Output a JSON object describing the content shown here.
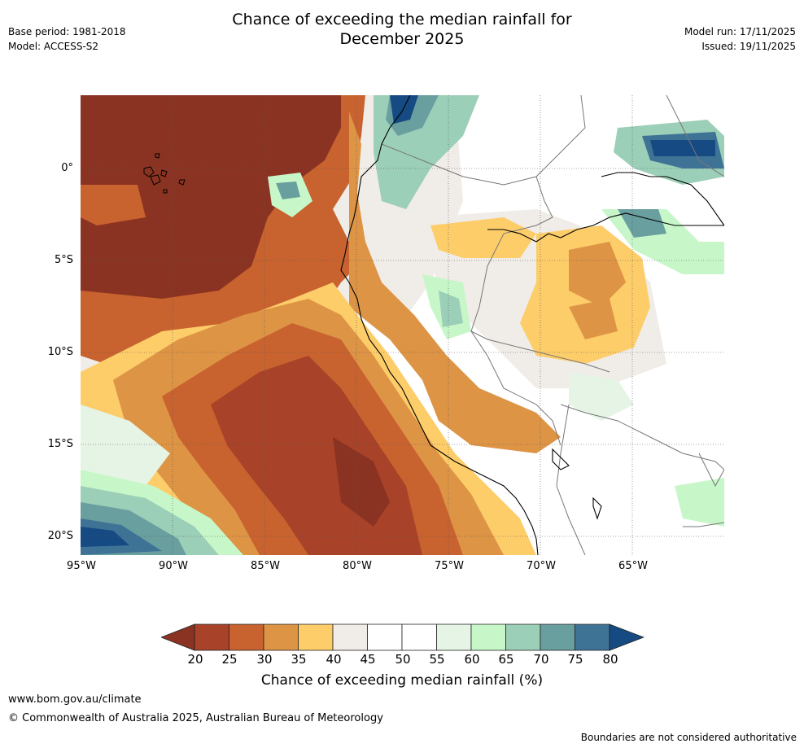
{
  "title": {
    "line1": "Chance of exceeding the median rainfall for",
    "line2": "December 2025"
  },
  "meta_left": {
    "base_period": "Base period: 1981-2018",
    "model": "Model: ACCESS-S2"
  },
  "meta_right": {
    "model_run": "Model run: 17/11/2025",
    "issued": "Issued: 19/11/2025"
  },
  "map": {
    "lat_labels": [
      "0°",
      "5°S",
      "10°S",
      "15°S",
      "20°S"
    ],
    "lon_labels": [
      "95°W",
      "90°W",
      "85°W",
      "80°W",
      "75°W",
      "70°W",
      "65°W"
    ]
  },
  "colorbar": {
    "ticks": [
      "20",
      "25",
      "30",
      "35",
      "40",
      "45",
      "50",
      "55",
      "60",
      "65",
      "70",
      "75",
      "80"
    ],
    "colors": [
      "#8b3322",
      "#a84228",
      "#c8632f",
      "#de9445",
      "#fdcd6a",
      "#f0ece7",
      "#ffffff",
      "#ffffff",
      "#e6f4e6",
      "#c7f7c9",
      "#9ccfb7",
      "#6a9fa0",
      "#3f7396",
      "#164a83"
    ],
    "label": "Chance of exceeding median rainfall (%)"
  },
  "footer": {
    "url": "www.bom.gov.au/climate",
    "copyright": "© Commonwealth of Australia 2025, Australian Bureau of Meteorology",
    "disclaimer": "Boundaries are not considered authoritative"
  }
}
